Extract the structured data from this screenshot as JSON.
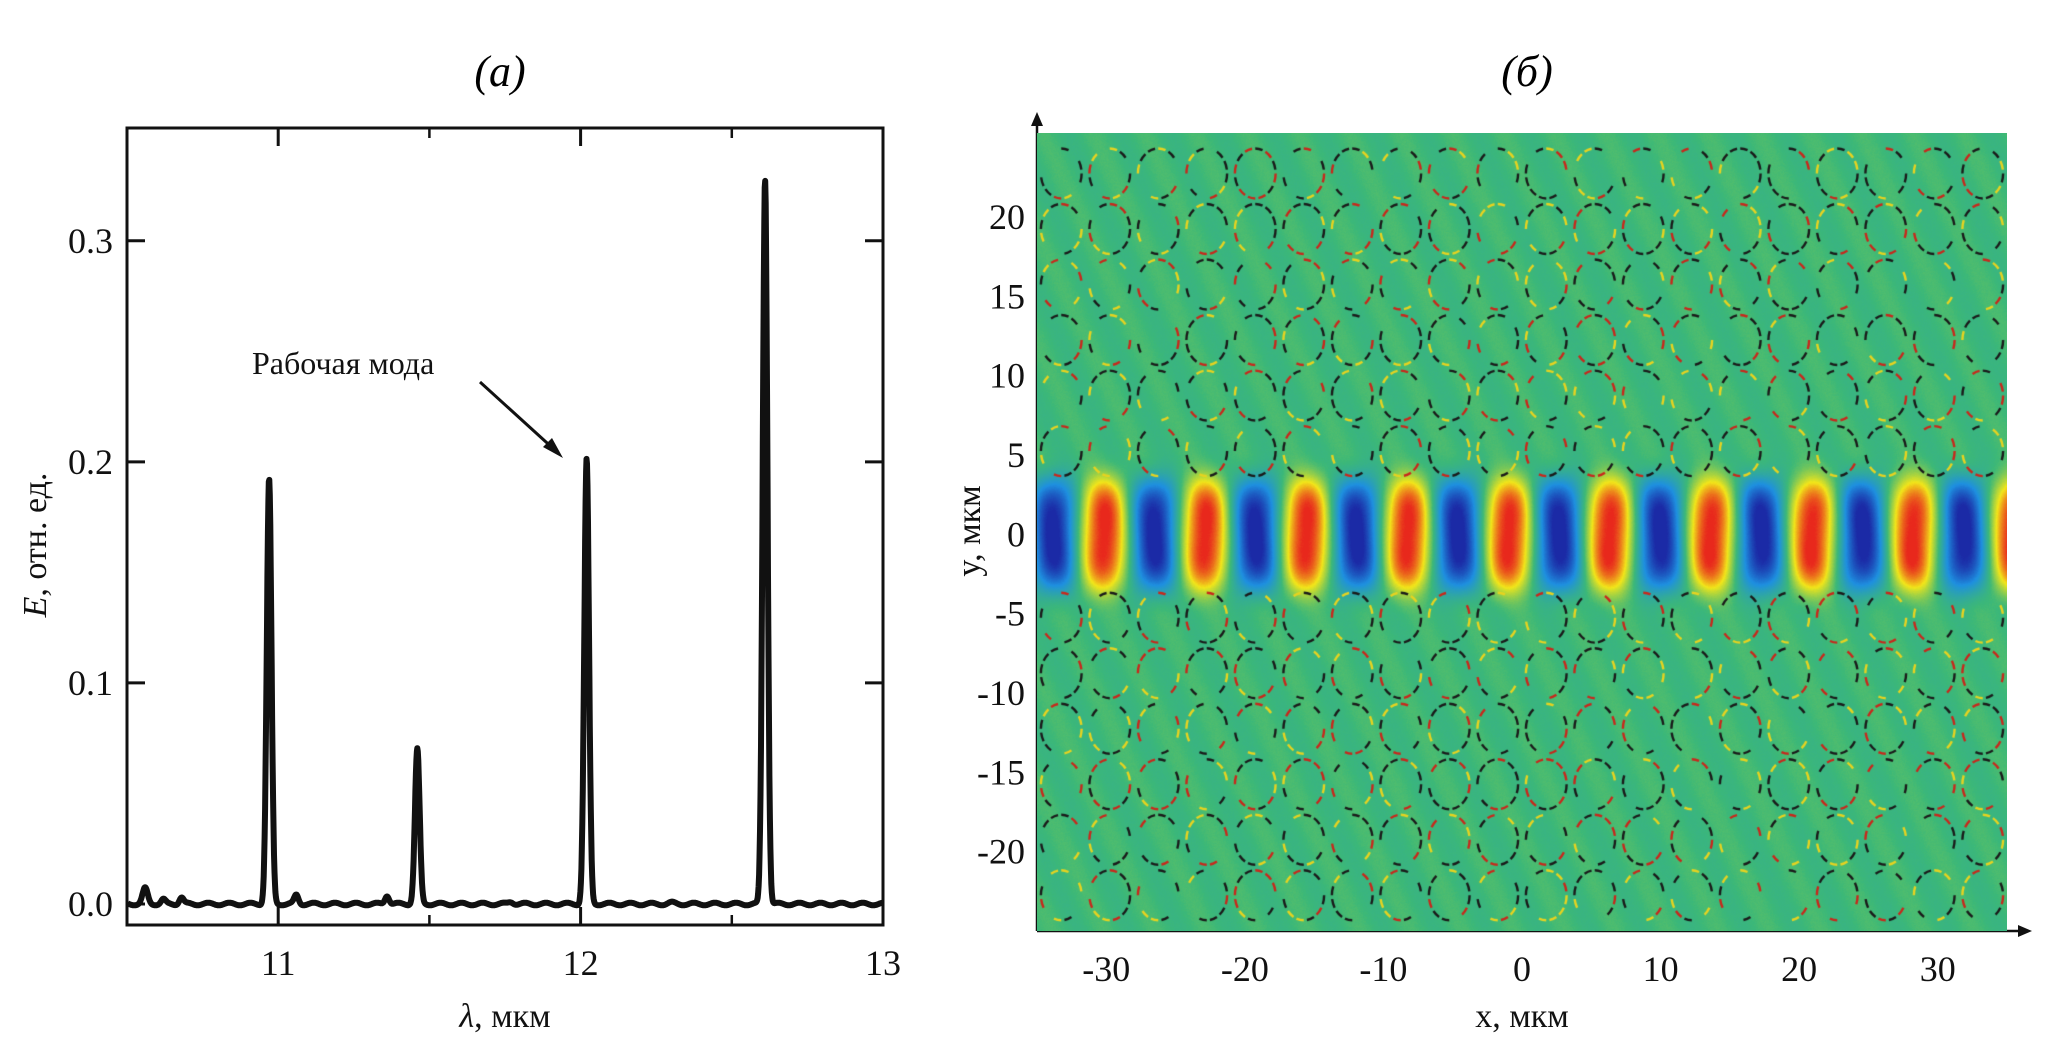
{
  "figure": {
    "panel_a_title": "(а)",
    "panel_b_title": "(б)"
  },
  "chart_data": [
    {
      "type": "line",
      "panel": "а",
      "title": "(а)",
      "xlabel": "λ, мкм",
      "ylabel": "E, отн. ед.",
      "ylabel_symbol": "E",
      "ylabel_units": ", отн. ед.",
      "xlabel_symbol": "λ",
      "xlabel_units": ", мкм",
      "xlim": [
        10.5,
        13.0
      ],
      "ylim": [
        -0.0095,
        0.351
      ],
      "xticks": [
        11,
        12,
        13
      ],
      "xtick_labels": [
        "11",
        "12",
        "13"
      ],
      "x_minor_ticks": [
        11.5,
        12.5
      ],
      "yticks": [
        0.0,
        0.1,
        0.2,
        0.3
      ],
      "ytick_labels": [
        "0.0",
        "0.1",
        "0.2",
        "0.3"
      ],
      "grid": false,
      "line_color": "#111111",
      "peaks": [
        {
          "x": 10.56,
          "y": 0.007,
          "width": 0.012
        },
        {
          "x": 10.62,
          "y": 0.002,
          "width": 0.01
        },
        {
          "x": 10.68,
          "y": 0.003,
          "width": 0.01
        },
        {
          "x": 10.97,
          "y": 0.192,
          "width": 0.011
        },
        {
          "x": 11.06,
          "y": 0.004,
          "width": 0.01
        },
        {
          "x": 11.36,
          "y": 0.004,
          "width": 0.01
        },
        {
          "x": 11.46,
          "y": 0.07,
          "width": 0.011
        },
        {
          "x": 11.77,
          "y": 0.001,
          "width": 0.012
        },
        {
          "x": 12.02,
          "y": 0.201,
          "width": 0.011
        },
        {
          "x": 12.3,
          "y": 0.0005,
          "width": 0.015
        },
        {
          "x": 12.61,
          "y": 0.328,
          "width": 0.011
        }
      ],
      "annotations": [
        {
          "text": "Рабочая мода",
          "points_to": {
            "x": 12.02,
            "y": 0.201
          }
        }
      ]
    },
    {
      "type": "heatmap",
      "panel": "б",
      "title": "(б)",
      "xlabel": "x, мкм",
      "ylabel": "y, мкм",
      "xlim": [
        -35,
        35
      ],
      "ylim": [
        -25,
        25.3
      ],
      "xticks": [
        -30,
        -20,
        -10,
        0,
        10,
        20,
        30
      ],
      "xtick_labels": [
        "-30",
        "-20",
        "-10",
        "0",
        "10",
        "20",
        "30"
      ],
      "yticks": [
        20,
        15,
        10,
        5,
        0,
        -5,
        -10,
        -15,
        -20
      ],
      "ytick_labels": [
        "20",
        "15",
        "10",
        "5",
        "0",
        "-5",
        "-10",
        "-15",
        "-20"
      ],
      "y_minor_step": 1,
      "description": "Field distribution of the working mode in a photonic-crystal waveguide: standing wave confined to |y| < 4 мкм along x, lattice of air holes in background",
      "lattice_period_um": 3.5,
      "mode_halfwidth_um": 3.5,
      "mode_wavelength_along_x_um": 7.3,
      "colormap": [
        "#1b2aa6",
        "#1e90e0",
        "#3cb878",
        "#f2e61a",
        "#e8281c"
      ],
      "background_color": "#4cb47c"
    }
  ]
}
